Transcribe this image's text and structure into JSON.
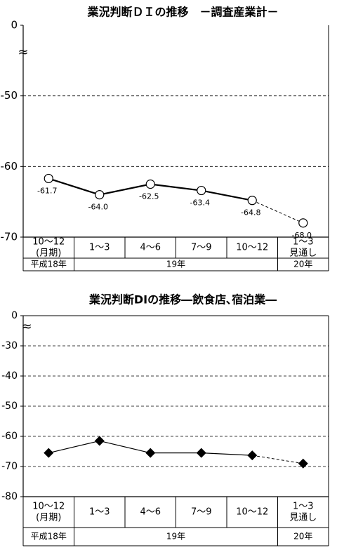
{
  "chart_data": [
    {
      "type": "line",
      "title": "業況判断ＤＩの推移　－調査産業計－",
      "categories": [
        "10～12",
        "1～3",
        "4～6",
        "7～9",
        "10～12",
        "1～3"
      ],
      "sub_labels": [
        "(月期)",
        null,
        null,
        null,
        null,
        "見通し"
      ],
      "periods": [
        "平成18年",
        "19年",
        null,
        null,
        null,
        "20年"
      ],
      "series": [
        {
          "name": "調査産業計",
          "color": "#000000",
          "marker": "circle",
          "values": [
            -61.7,
            -64.0,
            -62.5,
            -63.4,
            -64.8,
            -68.0
          ],
          "value_labels": [
            "-61.7",
            "-64.0",
            "-62.5",
            "-63.4",
            "-64.8",
            "-68.0"
          ]
        }
      ],
      "ylim": [
        -70,
        0
      ],
      "yticks": [
        0,
        -50,
        -60,
        -70
      ],
      "axis_break": "≈",
      "grid": true,
      "last_segment_dashed": true
    },
    {
      "type": "line",
      "title": "業況判断DIの推移―飲食店､宿泊業―",
      "categories": [
        "10～12",
        "1～3",
        "4～6",
        "7～9",
        "10～12",
        "1～3"
      ],
      "sub_labels": [
        "(月期)",
        null,
        null,
        null,
        null,
        "見通し"
      ],
      "periods": [
        "平成18年",
        "19年",
        null,
        null,
        null,
        "20年"
      ],
      "series": [
        {
          "name": "飲食店､宿泊業",
          "color": "#000000",
          "marker": "diamond",
          "values": [
            -65.5,
            -61.5,
            -65.5,
            -65.5,
            -66.3,
            -69.0
          ]
        }
      ],
      "ylim": [
        -80,
        0
      ],
      "yticks": [
        0,
        -30,
        -40,
        -50,
        -60,
        -70,
        -80
      ],
      "axis_break": "≈",
      "grid": true,
      "last_segment_dashed": true
    }
  ]
}
